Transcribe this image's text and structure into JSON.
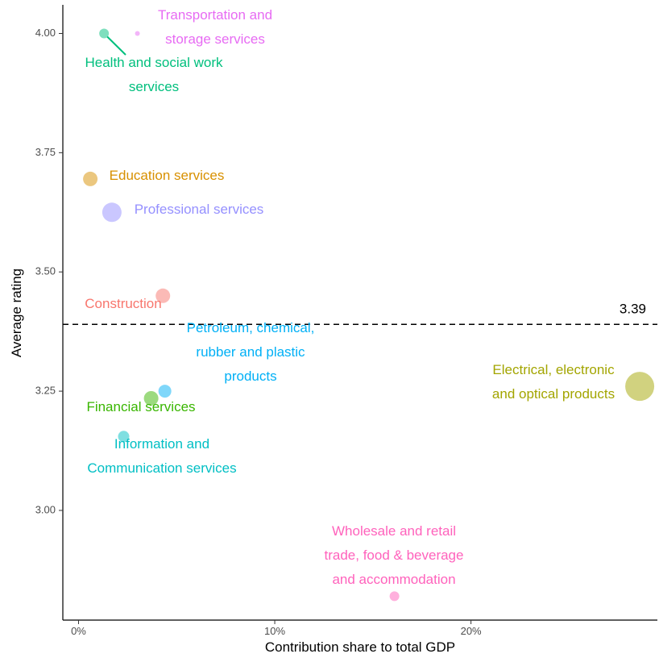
{
  "chart_data": {
    "type": "scatter",
    "xlabel": "Contribution share to total GDP",
    "ylabel": "Average rating",
    "xlim": [
      -0.008,
      0.295
    ],
    "ylim": [
      2.77,
      4.06
    ],
    "x_ticks": [
      {
        "value": 0.0,
        "label": "0%"
      },
      {
        "value": 0.1,
        "label": "10%"
      },
      {
        "value": 0.2,
        "label": "20%"
      }
    ],
    "y_ticks": [
      {
        "value": 3.0,
        "label": "3.00"
      },
      {
        "value": 3.25,
        "label": "3.25"
      },
      {
        "value": 3.5,
        "label": "3.50"
      },
      {
        "value": 3.75,
        "label": "3.75"
      },
      {
        "value": 4.0,
        "label": "4.00"
      }
    ],
    "grid": false,
    "reference_line": {
      "y": 3.39,
      "label": "3.39",
      "style": "dashed"
    },
    "points": [
      {
        "name": "Transportation and storage services",
        "label_lines": [
          "Transportation and",
          "storage services"
        ],
        "x": 0.03,
        "y": 4.0,
        "color": "#e76bf3"
      },
      {
        "name": "Health and social work services",
        "label_lines": [
          "Health and social work",
          "services"
        ],
        "x": 0.013,
        "y": 4.0,
        "color": "#00bf7d"
      },
      {
        "name": "Education services",
        "label_lines": [
          "Education services"
        ],
        "x": 0.006,
        "y": 3.695,
        "color": "#d89000"
      },
      {
        "name": "Professional services",
        "label_lines": [
          "Professional services"
        ],
        "x": 0.017,
        "y": 3.625,
        "color": "#9590ff"
      },
      {
        "name": "Construction",
        "label_lines": [
          "Construction"
        ],
        "x": 0.043,
        "y": 3.45,
        "color": "#f8766d"
      },
      {
        "name": "Petroleum, chemical, rubber and plastic products",
        "label_lines": [
          "Petroleum, chemical,",
          "rubber and plastic",
          "products"
        ],
        "x": 0.044,
        "y": 3.25,
        "color": "#00b0f6"
      },
      {
        "name": "Financial services",
        "label_lines": [
          "Financial services"
        ],
        "x": 0.037,
        "y": 3.235,
        "color": "#39b600"
      },
      {
        "name": "Information and Communication services",
        "label_lines": [
          "Information and",
          "Communication services"
        ],
        "x": 0.023,
        "y": 3.155,
        "color": "#00bfc4"
      },
      {
        "name": "Electrical, electronic and optical products",
        "label_lines": [
          "Electrical, electronic",
          "and optical products"
        ],
        "x": 0.286,
        "y": 3.26,
        "color": "#a3a500"
      },
      {
        "name": "Wholesale and retail trade, food & beverage and accommodation",
        "label_lines": [
          "Wholesale and retail",
          "trade, food & beverage",
          "and accommodation"
        ],
        "x": 0.161,
        "y": 2.82,
        "color": "#ff62bc"
      }
    ]
  }
}
